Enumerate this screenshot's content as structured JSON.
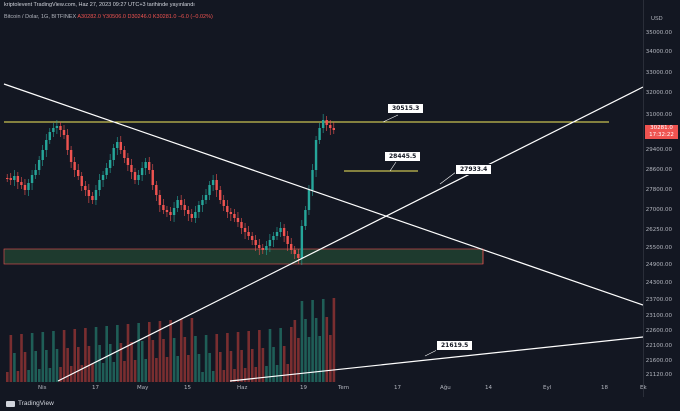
{
  "header": {
    "publisher": "kriptolevent TradingView.com, Haz 27, 2023 09:27 UTC+3 tarihinde yayınlandı",
    "symbol": "Bitcoin / Dolar, 1G, BITFINEX",
    "open": "A30282.0",
    "high": "Y30506.0",
    "low": "D30246.0",
    "close": "K30281.0",
    "change": "−6.0 (−0.02%)"
  },
  "price_axis": {
    "currency": "USD",
    "ticks": [
      "35000.00",
      "34000.00",
      "33000.00",
      "32000.00",
      "31000.00",
      "29400.00",
      "28600.00",
      "27800.00",
      "27000.00",
      "26250.00",
      "25500.00",
      "24900.00",
      "24300.00",
      "23700.00",
      "23100.00",
      "22600.00",
      "22100.00",
      "21600.00",
      "21120.00"
    ],
    "last_price": "30281.0",
    "last_countdown": "17:32:22"
  },
  "time_axis": {
    "ticks": [
      "Nis",
      "17",
      "May",
      "15",
      "Haz",
      "19",
      "Tem",
      "17",
      "Ağu",
      "14",
      "Eyl",
      "18",
      "Ek"
    ]
  },
  "annotations": {
    "a1": "30515.3",
    "a2": "28445.5",
    "a3": "27933.4",
    "a4": "21619.5"
  },
  "colors": {
    "up": "#26a69a",
    "down": "#ef5350",
    "background": "#131722",
    "level_line": "#f5eb5c",
    "trend_line": "#ffffff",
    "zone_fill": "#1e3a2e",
    "zone_border": "#ef5350"
  },
  "footer": {
    "brand": "TradingView"
  }
}
